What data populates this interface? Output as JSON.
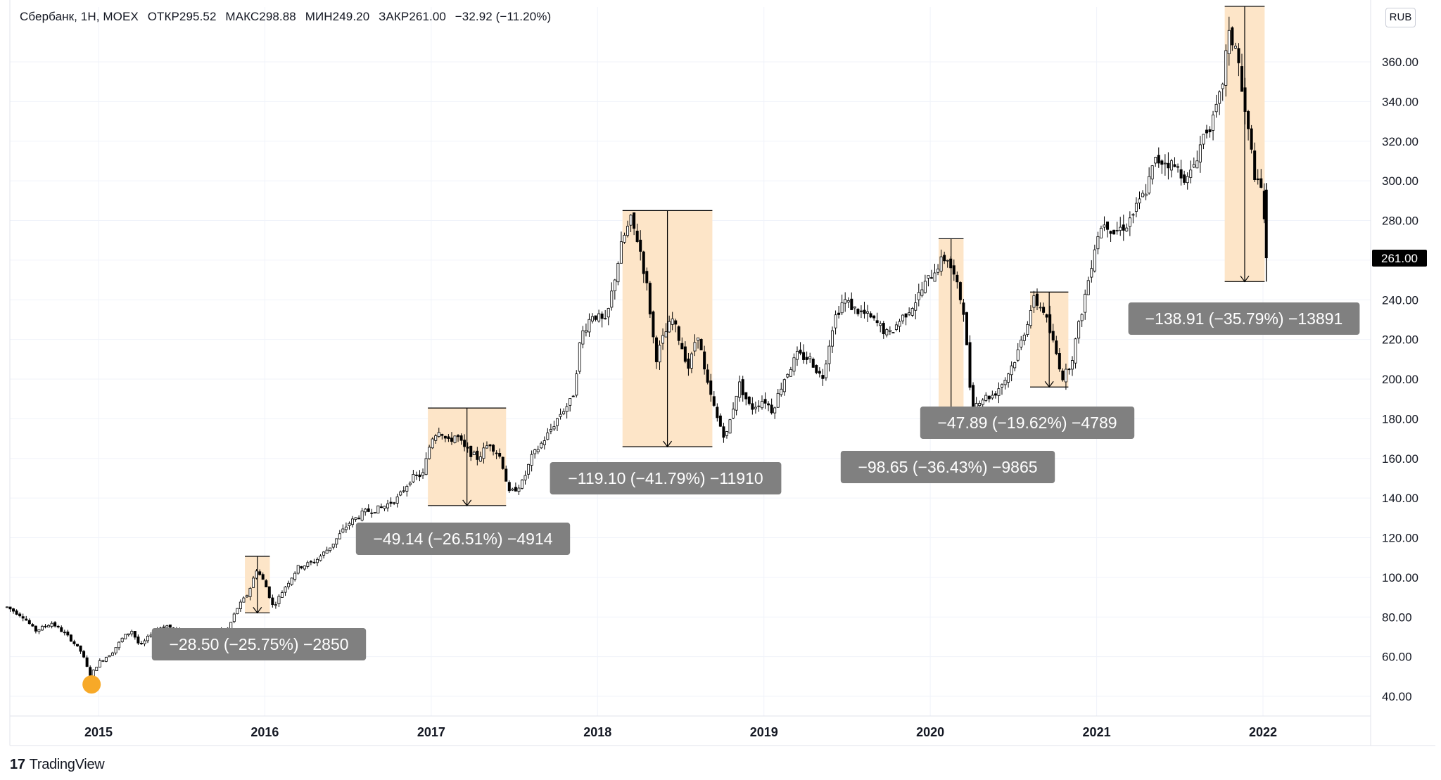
{
  "header": {
    "symbol": "Сбербанк, 1Н, MOEX",
    "open": "ОТКР295.52",
    "high": "МАКС298.88",
    "low": "МИН249.20",
    "close": "ЗАКР261.00",
    "change": "−32.92 (−11.20%)"
  },
  "currency_button": "RUB",
  "last_price": "261.00",
  "branding": {
    "logo_mark": "17",
    "logo_text": "TradingView"
  },
  "colors": {
    "candle": "#000000",
    "drawdown_fill": "#fde5c8",
    "drawdown_border": "#000000",
    "label_bg": "#808080",
    "label_text": "#ffffff",
    "marker": "#f7a928",
    "price_tag_bg": "#000000",
    "grid": "#f0f3fa"
  },
  "chart_data": {
    "type": "candlestick",
    "title": "Сбербанк, 1Н, MOEX",
    "x_ticks": [
      "2015",
      "2016",
      "2017",
      "2018",
      "2019",
      "2020",
      "2021",
      "2022"
    ],
    "y_ticks": [
      "40.00",
      "60.00",
      "80.00",
      "100.00",
      "120.00",
      "140.00",
      "160.00",
      "180.00",
      "200.00",
      "220.00",
      "240.00",
      "260.00",
      "280.00",
      "300.00",
      "320.00",
      "340.00",
      "360.00"
    ],
    "ylim": [
      35,
      380
    ],
    "xlim": [
      2014.45,
      2022.7
    ],
    "grid": true,
    "price_series": [
      [
        2014.45,
        85
      ],
      [
        2014.55,
        80
      ],
      [
        2014.62,
        73
      ],
      [
        2014.72,
        77
      ],
      [
        2014.82,
        70
      ],
      [
        2014.9,
        62
      ],
      [
        2014.95,
        50
      ],
      [
        2015.0,
        57
      ],
      [
        2015.08,
        62
      ],
      [
        2015.15,
        70
      ],
      [
        2015.2,
        73
      ],
      [
        2015.25,
        65
      ],
      [
        2015.32,
        72
      ],
      [
        2015.4,
        76
      ],
      [
        2015.5,
        72
      ],
      [
        2015.6,
        70
      ],
      [
        2015.7,
        73
      ],
      [
        2015.78,
        74
      ],
      [
        2015.83,
        84
      ],
      [
        2015.9,
        92
      ],
      [
        2015.95,
        104
      ],
      [
        2016.0,
        97
      ],
      [
        2016.05,
        85
      ],
      [
        2016.12,
        95
      ],
      [
        2016.2,
        105
      ],
      [
        2016.3,
        108
      ],
      [
        2016.4,
        116
      ],
      [
        2016.5,
        127
      ],
      [
        2016.6,
        133
      ],
      [
        2016.7,
        135
      ],
      [
        2016.8,
        140
      ],
      [
        2016.88,
        150
      ],
      [
        2016.95,
        152
      ],
      [
        2017.0,
        170
      ],
      [
        2017.05,
        175
      ],
      [
        2017.1,
        168
      ],
      [
        2017.15,
        172
      ],
      [
        2017.2,
        165
      ],
      [
        2017.28,
        160
      ],
      [
        2017.35,
        168
      ],
      [
        2017.42,
        160
      ],
      [
        2017.47,
        142
      ],
      [
        2017.55,
        148
      ],
      [
        2017.6,
        160
      ],
      [
        2017.7,
        172
      ],
      [
        2017.78,
        183
      ],
      [
        2017.85,
        190
      ],
      [
        2017.9,
        222
      ],
      [
        2017.97,
        233
      ],
      [
        2018.05,
        228
      ],
      [
        2018.1,
        250
      ],
      [
        2018.15,
        270
      ],
      [
        2018.2,
        280
      ],
      [
        2018.25,
        268
      ],
      [
        2018.3,
        245
      ],
      [
        2018.35,
        210
      ],
      [
        2018.4,
        222
      ],
      [
        2018.45,
        230
      ],
      [
        2018.5,
        218
      ],
      [
        2018.55,
        205
      ],
      [
        2018.6,
        225
      ],
      [
        2018.65,
        200
      ],
      [
        2018.72,
        180
      ],
      [
        2018.77,
        170
      ],
      [
        2018.85,
        198
      ],
      [
        2018.92,
        185
      ],
      [
        2019.0,
        190
      ],
      [
        2019.05,
        184
      ],
      [
        2019.12,
        200
      ],
      [
        2019.2,
        212
      ],
      [
        2019.28,
        210
      ],
      [
        2019.35,
        200
      ],
      [
        2019.42,
        230
      ],
      [
        2019.48,
        240
      ],
      [
        2019.55,
        235
      ],
      [
        2019.62,
        232
      ],
      [
        2019.68,
        228
      ],
      [
        2019.75,
        222
      ],
      [
        2019.82,
        230
      ],
      [
        2019.9,
        238
      ],
      [
        2019.97,
        248
      ],
      [
        2020.05,
        258
      ],
      [
        2020.1,
        262
      ],
      [
        2020.15,
        250
      ],
      [
        2020.2,
        235
      ],
      [
        2020.25,
        185
      ],
      [
        2020.3,
        190
      ],
      [
        2020.38,
        192
      ],
      [
        2020.45,
        200
      ],
      [
        2020.52,
        212
      ],
      [
        2020.58,
        228
      ],
      [
        2020.62,
        240
      ],
      [
        2020.68,
        235
      ],
      [
        2020.75,
        215
      ],
      [
        2020.8,
        200
      ],
      [
        2020.85,
        210
      ],
      [
        2020.9,
        230
      ],
      [
        2020.95,
        250
      ],
      [
        2021.0,
        272
      ],
      [
        2021.05,
        280
      ],
      [
        2021.1,
        274
      ],
      [
        2021.18,
        278
      ],
      [
        2021.25,
        288
      ],
      [
        2021.3,
        296
      ],
      [
        2021.35,
        310
      ],
      [
        2021.42,
        310
      ],
      [
        2021.5,
        305
      ],
      [
        2021.55,
        300
      ],
      [
        2021.6,
        312
      ],
      [
        2021.65,
        325
      ],
      [
        2021.7,
        330
      ],
      [
        2021.75,
        345
      ],
      [
        2021.79,
        373
      ],
      [
        2021.84,
        368
      ],
      [
        2021.88,
        340
      ],
      [
        2021.92,
        320
      ],
      [
        2021.96,
        298
      ],
      [
        2022.0,
        295
      ],
      [
        2022.02,
        261
      ]
    ],
    "low_marker": {
      "x": 2014.95,
      "y": 46
    },
    "drawdowns": [
      {
        "x0": 2015.88,
        "x1": 2016.03,
        "y_top": 110.6,
        "y_bottom": 82.1,
        "label": "−28.50 (−25.75%) −2850"
      },
      {
        "x0": 2016.98,
        "x1": 2017.45,
        "y_top": 185.4,
        "y_bottom": 136.2,
        "label": "−49.14 (−26.51%) −4914"
      },
      {
        "x0": 2018.15,
        "x1": 2018.69,
        "y_top": 285.0,
        "y_bottom": 165.9,
        "label": "−119.10 (−41.79%) −11910"
      },
      {
        "x0": 2020.05,
        "x1": 2020.2,
        "y_top": 270.8,
        "y_bottom": 172.1,
        "label": "−98.65 (−36.43%) −9865"
      },
      {
        "x0": 2020.6,
        "x1": 2020.83,
        "y_top": 243.9,
        "y_bottom": 196.0,
        "label": "−47.89 (−19.62%) −4789"
      },
      {
        "x0": 2021.77,
        "x1": 2022.01,
        "y_top": 388.0,
        "y_bottom": 249.2,
        "label": "−138.91 (−35.79%) −13891"
      }
    ],
    "last_close": 261.0
  }
}
